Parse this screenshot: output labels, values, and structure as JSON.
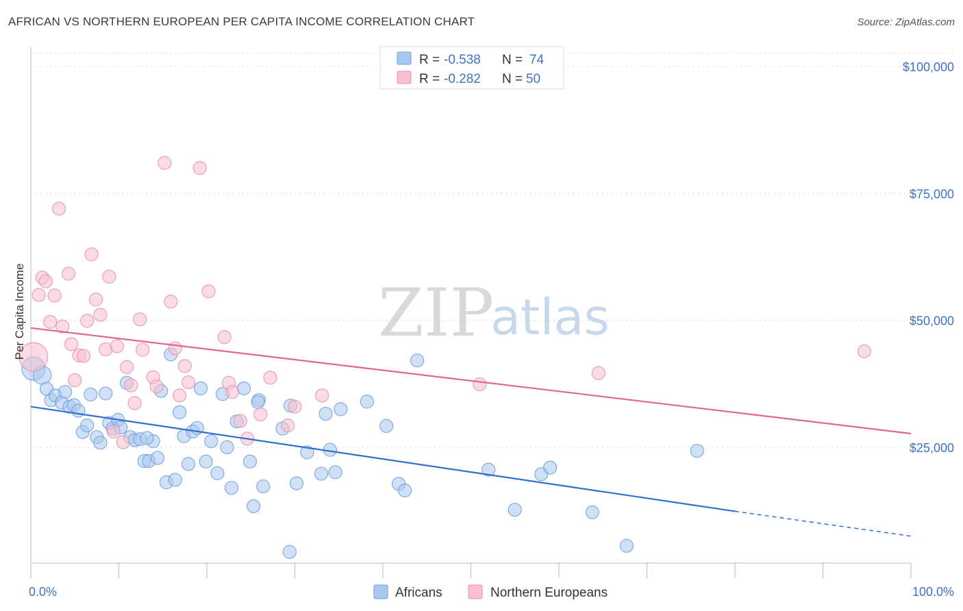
{
  "title": "AFRICAN VS NORTHERN EUROPEAN PER CAPITA INCOME CORRELATION CHART",
  "source": "Source: ZipAtlas.com",
  "watermark": {
    "zip": "ZIP",
    "atlas": "atlas"
  },
  "legend": {
    "rows": [
      {
        "r_label": "R =",
        "r_value": "-0.538",
        "n_label": "N =",
        "n_value": "74",
        "color": "#a9c8f0",
        "stroke": "#6f9fdc"
      },
      {
        "r_label": "R =",
        "r_value": "-0.282",
        "n_label": "N =",
        "n_value": "50",
        "color": "#f7bfd0",
        "stroke": "#e890ad"
      }
    ]
  },
  "bottom_legend": [
    {
      "label": "Africans",
      "color": "#a9c8f0",
      "stroke": "#6f9fdc"
    },
    {
      "label": "Northern Europeans",
      "color": "#f7bfd0",
      "stroke": "#e890ad"
    }
  ],
  "chart_data": {
    "type": "scatter",
    "title": "AFRICAN VS NORTHERN EUROPEAN PER CAPITA INCOME CORRELATION CHART",
    "xlabel": "",
    "ylabel": "Per Capita Income",
    "xlim": [
      0,
      100
    ],
    "ylim": [
      0,
      105000
    ],
    "x_tick_labels": [
      "0.0%",
      "100.0%"
    ],
    "y_ticks": [
      25000,
      50000,
      75000,
      100000
    ],
    "y_tick_labels": [
      "$25,000",
      "$50,000",
      "$75,000",
      "$100,000"
    ],
    "grid": true,
    "legend_position": "top-center",
    "series": [
      {
        "name": "Africans",
        "color": "#6f9fdc",
        "fill": "#a9c8f0",
        "trend": {
          "x0": 0,
          "y0": 33000,
          "x1": 80,
          "y1": 12400,
          "dash_x1": 100,
          "dash_y1": 7500,
          "color": "#2e6fd0"
        },
        "points": [
          [
            0.3,
            40500,
            1.8
          ],
          [
            1.3,
            39200,
            1.4
          ],
          [
            1.8,
            36500,
            1
          ],
          [
            2.3,
            34300,
            1
          ],
          [
            2.8,
            35200,
            1
          ],
          [
            3.5,
            33800,
            1
          ],
          [
            3.9,
            35900,
            1
          ],
          [
            4.4,
            33000,
            1
          ],
          [
            4.9,
            33300,
            1
          ],
          [
            5.4,
            32200,
            1
          ],
          [
            5.9,
            28000,
            1
          ],
          [
            6.4,
            29300,
            1
          ],
          [
            6.8,
            35400,
            1
          ],
          [
            7.5,
            27000,
            1
          ],
          [
            7.9,
            25900,
            1
          ],
          [
            8.5,
            35600,
            1
          ],
          [
            8.9,
            29800,
            1
          ],
          [
            9.3,
            28700,
            1
          ],
          [
            9.9,
            30400,
            1
          ],
          [
            10.2,
            28900,
            1
          ],
          [
            10.9,
            37700,
            1
          ],
          [
            11.3,
            27000,
            1
          ],
          [
            11.8,
            26400,
            1
          ],
          [
            12.4,
            26600,
            1
          ],
          [
            12.9,
            22300,
            1
          ],
          [
            13.4,
            22300,
            1
          ],
          [
            13.9,
            26200,
            1
          ],
          [
            14.4,
            22900,
            1
          ],
          [
            14.8,
            36100,
            1
          ],
          [
            15.4,
            18100,
            1
          ],
          [
            15.9,
            43300,
            1
          ],
          [
            16.4,
            18600,
            1
          ],
          [
            16.9,
            31900,
            1
          ],
          [
            17.4,
            27200,
            1
          ],
          [
            17.9,
            21700,
            1
          ],
          [
            18.4,
            28100,
            1
          ],
          [
            18.9,
            28800,
            1
          ],
          [
            19.3,
            36600,
            1
          ],
          [
            19.9,
            22200,
            1
          ],
          [
            20.5,
            26200,
            1
          ],
          [
            21.2,
            19900,
            1
          ],
          [
            21.8,
            35500,
            1
          ],
          [
            22.3,
            25000,
            1
          ],
          [
            22.8,
            17000,
            1
          ],
          [
            23.4,
            30100,
            1
          ],
          [
            24.2,
            36600,
            1
          ],
          [
            24.9,
            22200,
            1
          ],
          [
            25.3,
            13400,
            1
          ],
          [
            25.9,
            34300,
            1
          ],
          [
            26.4,
            17300,
            1
          ],
          [
            28.6,
            28700,
            1
          ],
          [
            29.4,
            4400,
            1
          ],
          [
            30.2,
            17900,
            1
          ],
          [
            31.4,
            24000,
            1
          ],
          [
            33.0,
            19800,
            1
          ],
          [
            33.5,
            31600,
            1
          ],
          [
            34.0,
            24500,
            1
          ],
          [
            34.6,
            20100,
            1
          ],
          [
            35.2,
            32500,
            1
          ],
          [
            38.2,
            34000,
            1
          ],
          [
            40.4,
            29200,
            1
          ],
          [
            41.8,
            17800,
            1
          ],
          [
            42.5,
            16500,
            1
          ],
          [
            43.9,
            42100,
            1
          ],
          [
            52.0,
            20600,
            1
          ],
          [
            55.0,
            12700,
            1
          ],
          [
            58.0,
            19700,
            1
          ],
          [
            59.0,
            21000,
            1
          ],
          [
            63.8,
            12200,
            1
          ],
          [
            67.7,
            5600,
            1
          ],
          [
            75.7,
            24300,
            1
          ],
          [
            25.8,
            33900,
            1
          ],
          [
            29.5,
            33200,
            1
          ],
          [
            13.2,
            26800,
            1
          ]
        ]
      },
      {
        "name": "Northern Europeans",
        "color": "#e890ad",
        "fill": "#f7bfd0",
        "trend": {
          "x0": 0,
          "y0": 48500,
          "x1": 100,
          "y1": 27700,
          "color": "#e3658f"
        },
        "points": [
          [
            0.3,
            42800,
            2.2
          ],
          [
            0.9,
            55000,
            1
          ],
          [
            1.3,
            58400,
            1
          ],
          [
            1.7,
            57700,
            1
          ],
          [
            2.2,
            49700,
            1
          ],
          [
            2.7,
            54900,
            1
          ],
          [
            3.2,
            72000,
            1
          ],
          [
            3.6,
            48800,
            1
          ],
          [
            4.3,
            59200,
            1
          ],
          [
            4.6,
            45300,
            1
          ],
          [
            5.0,
            38200,
            1
          ],
          [
            5.5,
            43100,
            1
          ],
          [
            6.0,
            43000,
            1
          ],
          [
            6.4,
            49900,
            1
          ],
          [
            6.9,
            63000,
            1
          ],
          [
            7.4,
            54100,
            1
          ],
          [
            7.9,
            51100,
            1
          ],
          [
            8.5,
            44300,
            1
          ],
          [
            8.9,
            58600,
            1
          ],
          [
            9.4,
            28100,
            1
          ],
          [
            9.8,
            44900,
            1
          ],
          [
            10.5,
            26000,
            1
          ],
          [
            10.9,
            40800,
            1
          ],
          [
            11.4,
            37200,
            1
          ],
          [
            11.8,
            33700,
            1
          ],
          [
            12.4,
            50200,
            1
          ],
          [
            12.7,
            44200,
            1
          ],
          [
            13.9,
            38800,
            1
          ],
          [
            14.3,
            37000,
            1
          ],
          [
            15.2,
            81000,
            1
          ],
          [
            15.9,
            53700,
            1
          ],
          [
            16.4,
            44500,
            1
          ],
          [
            16.9,
            35200,
            1
          ],
          [
            17.5,
            41000,
            1
          ],
          [
            17.9,
            37800,
            1
          ],
          [
            19.2,
            80000,
            1
          ],
          [
            20.2,
            55700,
            1
          ],
          [
            22.0,
            46700,
            1
          ],
          [
            22.5,
            37700,
            1
          ],
          [
            22.9,
            35900,
            1
          ],
          [
            23.8,
            30200,
            1
          ],
          [
            24.6,
            26700,
            1
          ],
          [
            26.1,
            31500,
            1
          ],
          [
            27.2,
            38700,
            1
          ],
          [
            29.2,
            29300,
            1
          ],
          [
            30.0,
            33000,
            1
          ],
          [
            33.1,
            35200,
            1
          ],
          [
            51.0,
            37400,
            1
          ],
          [
            64.5,
            39600,
            1
          ],
          [
            94.7,
            43900,
            1
          ]
        ]
      }
    ]
  }
}
